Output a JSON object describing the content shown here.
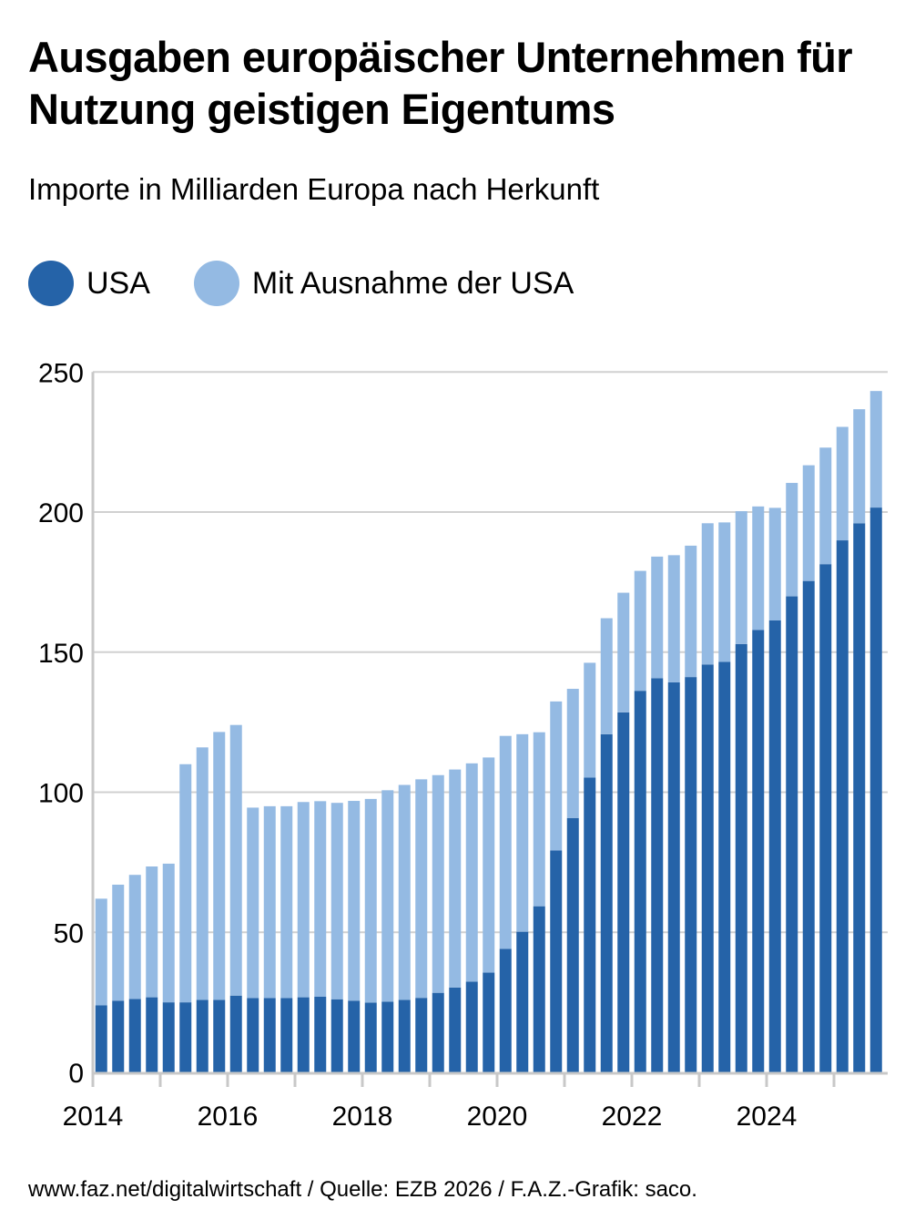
{
  "header": {
    "title": "Ausgaben europäischer Unternehmen für Nutzung geistigen Eigentums",
    "subtitle": "Importe in Milliarden Europa nach Herkunft"
  },
  "legend": [
    {
      "label": "USA",
      "color": "#2563a8"
    },
    {
      "label": "Mit Ausnahme der USA",
      "color": "#94bae3"
    }
  ],
  "footer": "www.faz.net/digitalwirtschaft / Quelle: EZB 2026 / F.A.Z.-Grafik: saco.",
  "colors": {
    "usa": "#2563a8",
    "non_usa": "#94bae3",
    "grid": "#d0d0d0",
    "axis": "#c8c8c8"
  },
  "chart_data": {
    "type": "bar",
    "stacked": true,
    "title": "Ausgaben europäischer Unternehmen für Nutzung geistigen Eigentums",
    "subtitle": "Importe in Milliarden Europa nach Herkunft",
    "xlabel": "",
    "ylabel": "",
    "ylim": [
      0,
      250
    ],
    "yticks": [
      0,
      50,
      100,
      150,
      200,
      250
    ],
    "xtick_labels": [
      "2014",
      "2016",
      "2018",
      "2020",
      "2022",
      "2024"
    ],
    "xtick_years": [
      2014,
      2015,
      2016,
      2017,
      2018,
      2019,
      2020,
      2021,
      2022,
      2023,
      2024,
      2025
    ],
    "grid": "horizontal",
    "legend_position": "top-left",
    "categories": [
      "2014Q1",
      "2014Q2",
      "2014Q3",
      "2014Q4",
      "2015Q1",
      "2015Q2",
      "2015Q3",
      "2015Q4",
      "2016Q1",
      "2016Q2",
      "2016Q3",
      "2016Q4",
      "2017Q1",
      "2017Q2",
      "2017Q3",
      "2017Q4",
      "2018Q1",
      "2018Q2",
      "2018Q3",
      "2018Q4",
      "2019Q1",
      "2019Q2",
      "2019Q3",
      "2019Q4",
      "2020Q1",
      "2020Q2",
      "2020Q3",
      "2020Q4",
      "2021Q1",
      "2021Q2",
      "2021Q3",
      "2021Q4",
      "2022Q1",
      "2022Q2",
      "2022Q3",
      "2022Q4",
      "2023Q1",
      "2023Q2",
      "2023Q3",
      "2023Q4",
      "2024Q1",
      "2024Q2",
      "2024Q3",
      "2024Q4",
      "2025Q1",
      "2025Q2",
      "2025Q3"
    ],
    "series": [
      {
        "name": "USA",
        "values": [
          23.9,
          25.6,
          26.2,
          26.8,
          25.0,
          25.0,
          25.9,
          25.9,
          27.4,
          26.5,
          26.5,
          26.5,
          26.8,
          27.0,
          26.1,
          25.6,
          24.9,
          25.2,
          25.9,
          26.6,
          28.4,
          30.3,
          32.4,
          35.6,
          44.1,
          50.2,
          59.3,
          79.2,
          90.8,
          105.2,
          120.7,
          128.5,
          136.2,
          140.7,
          139.2,
          141.1,
          145.6,
          146.5,
          152.9,
          157.9,
          161.3,
          169.9,
          175.4,
          181.4,
          189.9,
          196.0,
          201.6
        ]
      },
      {
        "name": "Mit Ausnahme der USA",
        "values": [
          38.1,
          41.4,
          44.3,
          46.7,
          49.5,
          85.0,
          90.1,
          95.6,
          96.6,
          68.0,
          68.5,
          68.5,
          69.7,
          69.8,
          70.1,
          71.3,
          72.7,
          75.5,
          76.7,
          78.0,
          77.7,
          77.8,
          77.9,
          76.8,
          76.0,
          70.5,
          62.1,
          53.2,
          46.1,
          41.0,
          41.4,
          42.7,
          42.8,
          43.4,
          45.4,
          46.9,
          50.4,
          49.8,
          47.4,
          44.1,
          40.2,
          40.5,
          41.3,
          41.6,
          40.5,
          40.7,
          41.6
        ]
      }
    ],
    "totals": [
      62.0,
      67.0,
      70.5,
      73.5,
      74.5,
      110.0,
      115.9,
      121.5,
      124.0,
      94.5,
      95.0,
      95.0,
      96.5,
      96.8,
      96.2,
      96.9,
      97.6,
      100.7,
      102.6,
      104.6,
      106.1,
      108.1,
      110.3,
      112.4,
      120.1,
      120.7,
      121.4,
      132.4,
      136.9,
      146.2,
      162.1,
      171.2,
      179.0,
      184.1,
      184.6,
      188.0,
      196.0,
      196.3,
      200.3,
      202.0,
      201.5,
      210.4,
      216.7,
      223.0,
      230.4,
      236.7,
      243.2
    ]
  }
}
